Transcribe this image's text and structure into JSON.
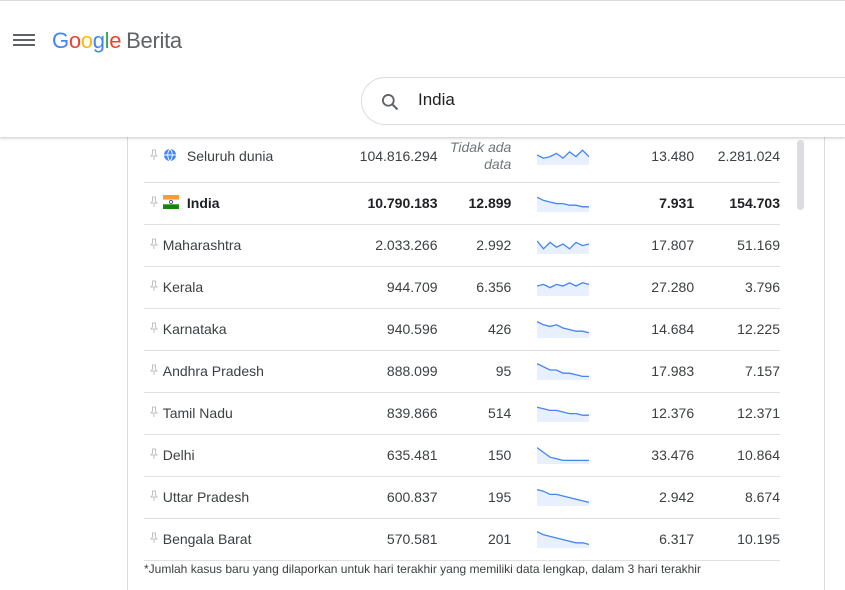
{
  "header": {
    "logo_letters": [
      "G",
      "o",
      "o",
      "g",
      "l",
      "e"
    ],
    "product": "Berita",
    "search_value": "India"
  },
  "rows": [
    {
      "location": "Seluruh dunia",
      "cases": "104.816.294",
      "new_cases": "",
      "no_data_1": "Tidak ada",
      "no_data_2": "data",
      "per_million": "13.480",
      "deaths": "2.281.024",
      "icon": "globe-icon",
      "trend": [
        5,
        7,
        6,
        4,
        7,
        3,
        6,
        2,
        6
      ]
    },
    {
      "location": "India",
      "cases": "10.790.183",
      "new_cases": "12.899",
      "per_million": "7.931",
      "deaths": "154.703",
      "icon": "india-flag-icon",
      "bold": true,
      "trend": [
        2,
        4,
        5,
        6,
        6,
        7,
        7,
        8,
        8
      ]
    },
    {
      "location": "Maharashtra",
      "cases": "2.033.266",
      "new_cases": "2.992",
      "per_million": "17.807",
      "deaths": "51.169",
      "trend": [
        3,
        8,
        4,
        7,
        5,
        8,
        4,
        6,
        5
      ]
    },
    {
      "location": "Kerala",
      "cases": "944.709",
      "new_cases": "6.356",
      "per_million": "27.280",
      "deaths": "3.796",
      "trend": [
        5,
        4,
        6,
        4,
        5,
        3,
        5,
        3,
        4
      ]
    },
    {
      "location": "Karnataka",
      "cases": "940.596",
      "new_cases": "426",
      "per_million": "14.684",
      "deaths": "12.225",
      "trend": [
        1,
        3,
        4,
        3,
        5,
        6,
        7,
        7,
        8
      ]
    },
    {
      "location": "Andhra Pradesh",
      "cases": "888.099",
      "new_cases": "95",
      "per_million": "17.983",
      "deaths": "7.157",
      "trend": [
        1,
        3,
        5,
        5,
        7,
        7,
        8,
        9,
        9
      ]
    },
    {
      "location": "Tamil Nadu",
      "cases": "839.866",
      "new_cases": "514",
      "per_million": "12.376",
      "deaths": "12.371",
      "trend": [
        2,
        3,
        4,
        4,
        5,
        6,
        6,
        7,
        7
      ]
    },
    {
      "location": "Delhi",
      "cases": "635.481",
      "new_cases": "150",
      "per_million": "33.476",
      "deaths": "10.864",
      "trend": [
        1,
        4,
        7,
        8,
        9,
        9,
        9,
        9,
        9
      ]
    },
    {
      "location": "Uttar Pradesh",
      "cases": "600.837",
      "new_cases": "195",
      "per_million": "2.942",
      "deaths": "8.674",
      "trend": [
        1,
        2,
        4,
        4,
        5,
        6,
        7,
        8,
        9
      ]
    },
    {
      "location": "Bengala Barat",
      "cases": "570.581",
      "new_cases": "201",
      "per_million": "6.317",
      "deaths": "10.195",
      "trend": [
        1,
        3,
        4,
        5,
        6,
        7,
        8,
        8,
        9
      ]
    }
  ],
  "footnote": "*Jumlah kasus baru yang dilaporkan untuk hari terakhir yang memiliki data lengkap, dalam 3 hari terakhir",
  "colors": {
    "spark": "#4285f4",
    "spark_fill": "#e8f0fe"
  }
}
